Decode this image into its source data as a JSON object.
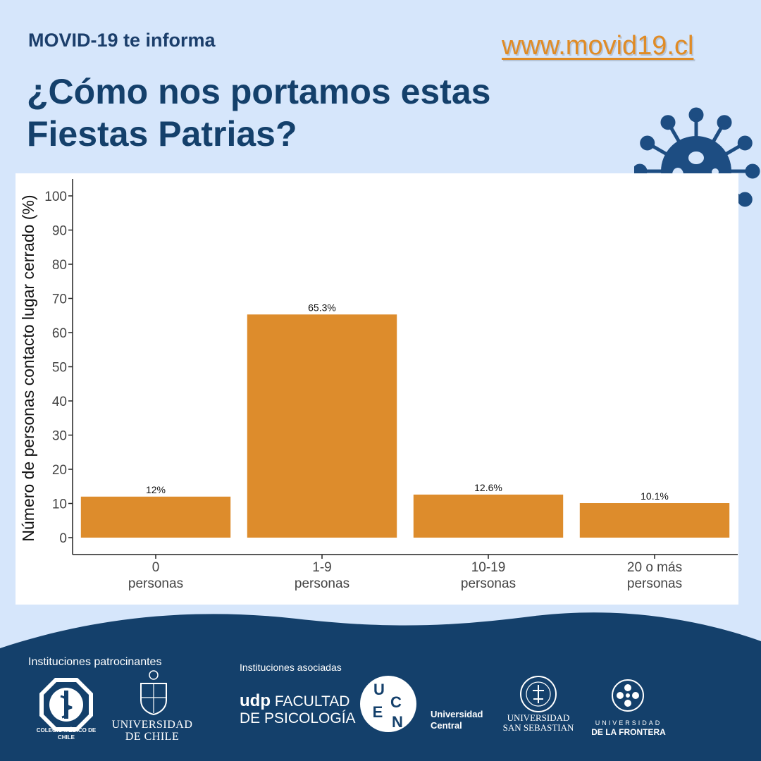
{
  "header": {
    "kicker": "MOVID-19 te informa",
    "url": "www.movid19.cl",
    "title": "¿Cómo nos portamos estas Fiestas Patrias?"
  },
  "colors": {
    "background": "#d6e6fb",
    "navy": "#14406b",
    "accent": "#e08b25",
    "bar": "#dd8c2c",
    "virus": "#1d4d82"
  },
  "chart_data": {
    "type": "bar",
    "categories": [
      "0\npersonas",
      "1-9\npersonas",
      "10-19\npersonas",
      "20 o más\npersonas"
    ],
    "values": [
      12,
      65.3,
      12.6,
      10.1
    ],
    "data_labels": [
      "12%",
      "65.3%",
      "12.6%",
      "10.1%"
    ],
    "ylabel": "Número de personas contacto lugar cerrado (%)",
    "xlabel": "",
    "ylim": [
      0,
      100
    ],
    "yticks": [
      0,
      10,
      20,
      30,
      40,
      50,
      60,
      70,
      80,
      90,
      100
    ],
    "grid": false,
    "legend": "none"
  },
  "footer": {
    "sponsors_label": "Instituciones patrocinantes",
    "associates_label": "Instituciones asociadas",
    "colegio_medico": "COLEGIO MÉDICO DE CHILE",
    "uchile_line1": "UNIVERSIDAD",
    "uchile_line2": "DE CHILE",
    "udp_brand": "udp",
    "udp_line1": "FACULTAD",
    "udp_line2": "DE PSICOLOGÍA",
    "ucen_letters": [
      "U",
      "C",
      "E",
      "N"
    ],
    "ucentral_line1": "Universidad",
    "ucentral_line2": "Central",
    "uss_line1": "UNIVERSIDAD",
    "uss_line2": "SAN SEBASTIAN",
    "ufro_line1": "UNIVERSIDAD",
    "ufro_line2": "DE LA FRONTERA"
  }
}
